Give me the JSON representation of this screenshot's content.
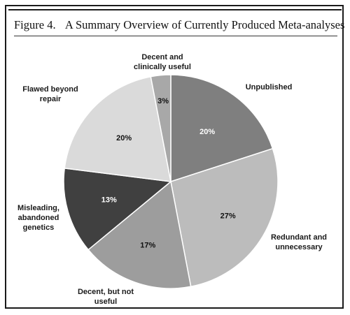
{
  "figure": {
    "number": "Figure 4.",
    "title": "A Summary Overview of Currently Produced Meta-analyses"
  },
  "chart_data": {
    "type": "pie",
    "start": "12 o'clock",
    "direction": "clockwise",
    "slices": [
      {
        "category": [
          "Unpublished"
        ],
        "value": 20,
        "label": "20%",
        "color": "#7f7f7f"
      },
      {
        "category": [
          "Redundant and",
          "unnecessary"
        ],
        "value": 27,
        "label": "27%",
        "color": "#bcbcbc"
      },
      {
        "category": [
          "Decent, but not",
          "useful"
        ],
        "value": 17,
        "label": "17%",
        "color": "#9d9d9d"
      },
      {
        "category": [
          "Misleading,",
          "abandoned",
          "genetics"
        ],
        "value": 13,
        "label": "13%",
        "color": "#404040"
      },
      {
        "category": [
          "Flawed beyond",
          "repair"
        ],
        "value": 20,
        "label": "20%",
        "color": "#dadada"
      },
      {
        "category": [
          "Decent and",
          "clinically useful"
        ],
        "value": 3,
        "label": "3%",
        "color": "#a8a8a8"
      }
    ]
  }
}
